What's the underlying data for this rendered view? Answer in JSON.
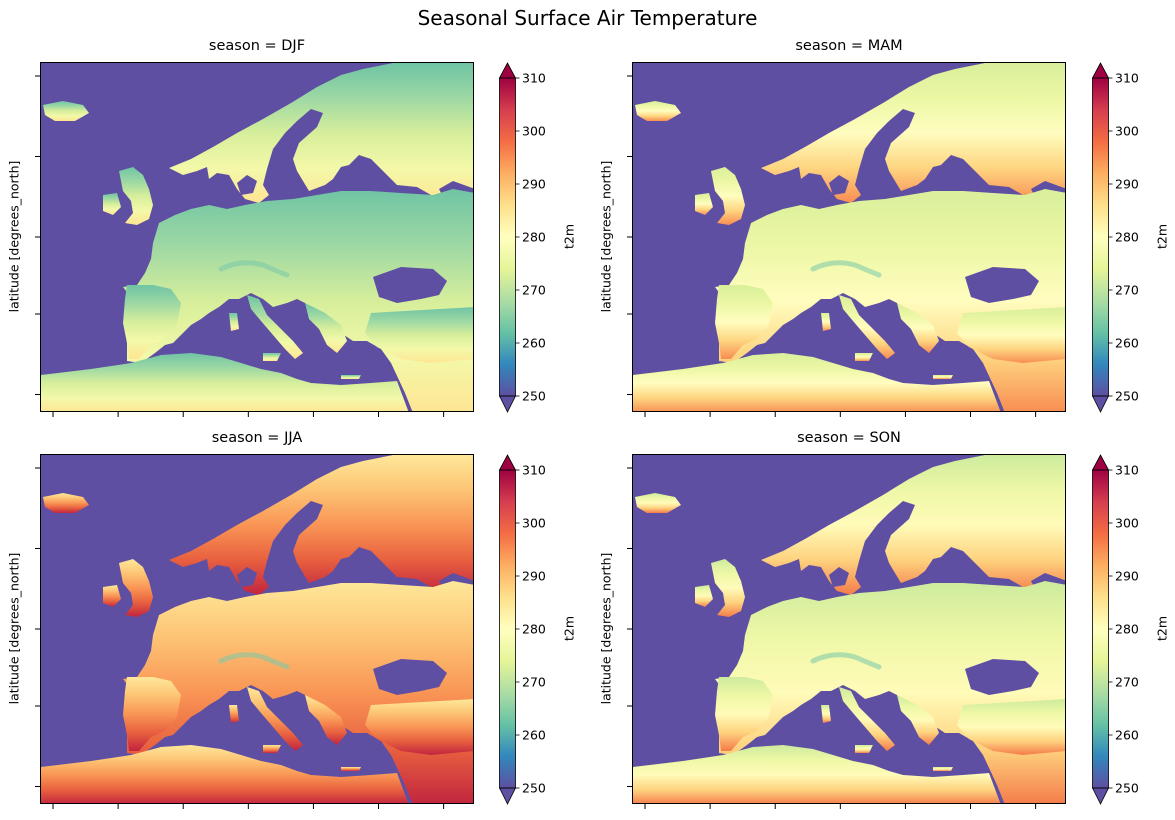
{
  "figure": {
    "suptitle": "Seasonal Surface Air Temperature"
  },
  "chart_data": [
    {
      "type": "heatmap",
      "title": "season = DJF",
      "ylabel": "latitude [degrees_north]",
      "colorbar_label": "t2m",
      "colormap": "Spectral_r",
      "vlim": [
        250,
        310
      ],
      "colorbar_ticks": [
        "250",
        "260",
        "270",
        "280",
        "290",
        "300",
        "310"
      ],
      "colorbar_extend": "both",
      "ocean_color": "#5e4fa2",
      "land_gradient_north_to_south": [
        "#6fc4a4",
        "#9dd8a4",
        "#d6ee9b",
        "#f3f9a9",
        "#fee593"
      ]
    },
    {
      "type": "heatmap",
      "title": "season = MAM",
      "ylabel": "latitude [degrees_north]",
      "colorbar_label": "t2m",
      "colormap": "Spectral_r",
      "vlim": [
        250,
        310
      ],
      "colorbar_ticks": [
        "250",
        "260",
        "270",
        "280",
        "290",
        "300",
        "310"
      ],
      "colorbar_extend": "both",
      "ocean_color": "#5e4fa2",
      "land_gradient_north_to_south": [
        "#d9ef9b",
        "#ecf7a4",
        "#fffdbf",
        "#fed580",
        "#f88d52"
      ]
    },
    {
      "type": "heatmap",
      "title": "season = JJA",
      "ylabel": "latitude [degrees_north]",
      "colorbar_label": "t2m",
      "colormap": "Spectral_r",
      "vlim": [
        250,
        310
      ],
      "colorbar_ticks": [
        "250",
        "260",
        "270",
        "280",
        "290",
        "300",
        "310"
      ],
      "colorbar_extend": "both",
      "ocean_color": "#5e4fa2",
      "land_gradient_north_to_south": [
        "#fee89a",
        "#fdc474",
        "#f99555",
        "#e8603f",
        "#c1243f"
      ]
    },
    {
      "type": "heatmap",
      "title": "season = SON",
      "ylabel": "latitude [degrees_north]",
      "colorbar_label": "t2m",
      "colormap": "Spectral_r",
      "vlim": [
        250,
        310
      ],
      "colorbar_ticks": [
        "250",
        "260",
        "270",
        "280",
        "290",
        "300",
        "310"
      ],
      "colorbar_extend": "both",
      "ocean_color": "#5e4fa2",
      "land_gradient_north_to_south": [
        "#cdeb9d",
        "#eef8a6",
        "#fffbb9",
        "#fed27e",
        "#f47b4a"
      ]
    }
  ]
}
